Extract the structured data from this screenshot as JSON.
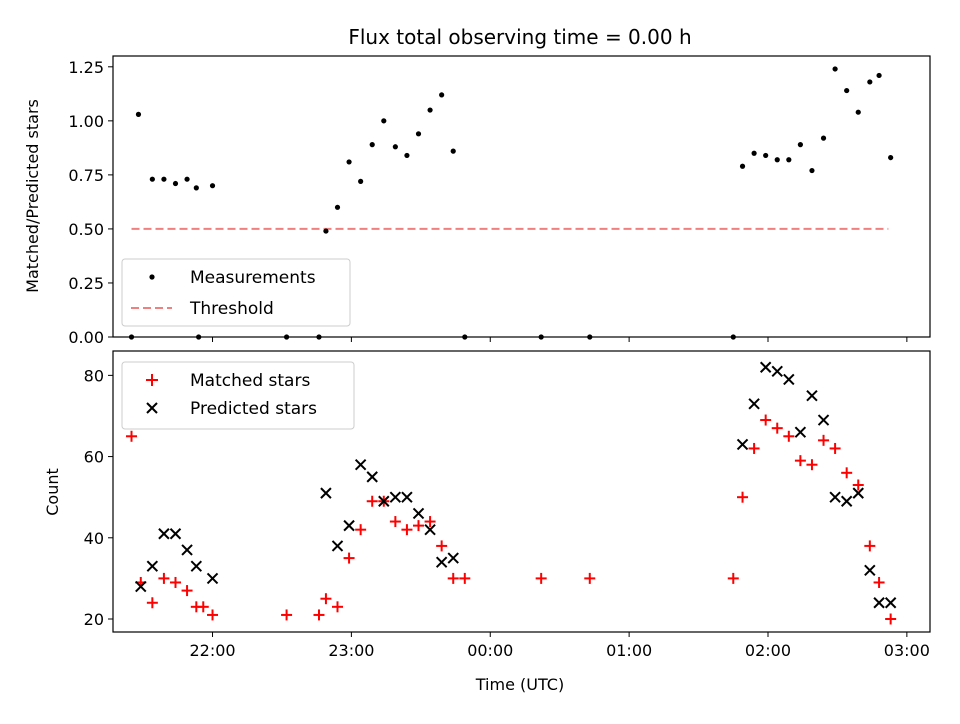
{
  "chart_data": [
    {
      "type": "scatter",
      "title": "Flux total observing time = 0.00 h",
      "xlabel": "",
      "ylabel": "Matched/Predicted stars",
      "xlim": [
        "21:17",
        "03:10"
      ],
      "ylim": [
        0,
        1.3
      ],
      "yticks": [
        "0.00",
        "0.25",
        "0.50",
        "0.75",
        "1.00",
        "1.25"
      ],
      "xticks": [
        "22:00",
        "23:00",
        "00:00",
        "01:00",
        "02:00",
        "03:00"
      ],
      "legend": {
        "placement": "lower-left",
        "entries": [
          "Measurements",
          "Threshold"
        ]
      },
      "threshold": {
        "name": "Threshold",
        "value": 0.5,
        "x_range": [
          "21:25",
          "02:52"
        ],
        "color": "#f08080"
      },
      "series": [
        {
          "name": "Measurements",
          "color": "#000000",
          "points": [
            [
              "21:25",
              0.0
            ],
            [
              "21:28",
              1.03
            ],
            [
              "21:34",
              0.73
            ],
            [
              "21:39",
              0.73
            ],
            [
              "21:44",
              0.71
            ],
            [
              "21:49",
              0.73
            ],
            [
              "21:53",
              0.69
            ],
            [
              "21:54",
              0.0
            ],
            [
              "22:00",
              0.7
            ],
            [
              "22:32",
              0.0
            ],
            [
              "22:46",
              0.0
            ],
            [
              "22:49",
              0.49
            ],
            [
              "22:54",
              0.6
            ],
            [
              "22:59",
              0.81
            ],
            [
              "23:04",
              0.72
            ],
            [
              "23:09",
              0.89
            ],
            [
              "23:14",
              1.0
            ],
            [
              "23:19",
              0.88
            ],
            [
              "23:24",
              0.84
            ],
            [
              "23:29",
              0.94
            ],
            [
              "23:34",
              1.05
            ],
            [
              "23:39",
              1.12
            ],
            [
              "23:44",
              0.86
            ],
            [
              "23:49",
              0.0
            ],
            [
              "00:22",
              0.0
            ],
            [
              "00:43",
              0.0
            ],
            [
              "01:45",
              0.0
            ],
            [
              "01:49",
              0.79
            ],
            [
              "01:54",
              0.85
            ],
            [
              "01:59",
              0.84
            ],
            [
              "02:04",
              0.82
            ],
            [
              "02:09",
              0.82
            ],
            [
              "02:14",
              0.89
            ],
            [
              "02:19",
              0.77
            ],
            [
              "02:24",
              0.92
            ],
            [
              "02:29",
              1.24
            ],
            [
              "02:34",
              1.14
            ],
            [
              "02:39",
              1.04
            ],
            [
              "02:44",
              1.18
            ],
            [
              "02:48",
              1.21
            ],
            [
              "02:53",
              0.83
            ]
          ]
        }
      ]
    },
    {
      "type": "scatter",
      "title": "",
      "xlabel": "Time (UTC)",
      "ylabel": "Count",
      "xlim": [
        "21:17",
        "03:10"
      ],
      "ylim": [
        16.8,
        86
      ],
      "yticks": [
        "20",
        "40",
        "60",
        "80"
      ],
      "xticks": [
        "22:00",
        "23:00",
        "00:00",
        "01:00",
        "02:00",
        "03:00"
      ],
      "legend": {
        "placement": "upper-left",
        "entries": [
          "Matched stars",
          "Predicted stars"
        ]
      },
      "series": [
        {
          "name": "Matched stars",
          "color": "#ff0000",
          "marker": "plus",
          "points": [
            [
              "21:25",
              65
            ],
            [
              "21:29",
              29
            ],
            [
              "21:34",
              24
            ],
            [
              "21:39",
              30
            ],
            [
              "21:44",
              29
            ],
            [
              "21:49",
              27
            ],
            [
              "21:53",
              23
            ],
            [
              "21:56",
              23
            ],
            [
              "22:00",
              21
            ],
            [
              "22:32",
              21
            ],
            [
              "22:46",
              21
            ],
            [
              "22:49",
              25
            ],
            [
              "22:54",
              23
            ],
            [
              "22:59",
              35
            ],
            [
              "23:04",
              42
            ],
            [
              "23:09",
              49
            ],
            [
              "23:14",
              49
            ],
            [
              "23:19",
              44
            ],
            [
              "23:24",
              42
            ],
            [
              "23:29",
              43
            ],
            [
              "23:34",
              44
            ],
            [
              "23:39",
              38
            ],
            [
              "23:44",
              30
            ],
            [
              "23:49",
              30
            ],
            [
              "00:22",
              30
            ],
            [
              "00:43",
              30
            ],
            [
              "01:45",
              30
            ],
            [
              "01:49",
              50
            ],
            [
              "01:54",
              62
            ],
            [
              "01:59",
              69
            ],
            [
              "02:04",
              67
            ],
            [
              "02:09",
              65
            ],
            [
              "02:14",
              59
            ],
            [
              "02:19",
              58
            ],
            [
              "02:24",
              64
            ],
            [
              "02:29",
              62
            ],
            [
              "02:34",
              56
            ],
            [
              "02:39",
              53
            ],
            [
              "02:44",
              38
            ],
            [
              "02:48",
              29
            ],
            [
              "02:53",
              20
            ]
          ]
        },
        {
          "name": "Predicted stars",
          "color": "#000000",
          "marker": "x",
          "points": [
            [
              "21:29",
              28
            ],
            [
              "21:34",
              33
            ],
            [
              "21:39",
              41
            ],
            [
              "21:44",
              41
            ],
            [
              "21:49",
              37
            ],
            [
              "21:53",
              33
            ],
            [
              "22:00",
              30
            ],
            [
              "22:49",
              51
            ],
            [
              "22:54",
              38
            ],
            [
              "22:59",
              43
            ],
            [
              "23:04",
              58
            ],
            [
              "23:09",
              55
            ],
            [
              "23:14",
              49
            ],
            [
              "23:19",
              50
            ],
            [
              "23:24",
              50
            ],
            [
              "23:29",
              46
            ],
            [
              "23:34",
              42
            ],
            [
              "23:39",
              34
            ],
            [
              "23:44",
              35
            ],
            [
              "01:49",
              63
            ],
            [
              "01:54",
              73
            ],
            [
              "01:59",
              82
            ],
            [
              "02:04",
              81
            ],
            [
              "02:09",
              79
            ],
            [
              "02:14",
              66
            ],
            [
              "02:19",
              75
            ],
            [
              "02:24",
              69
            ],
            [
              "02:29",
              50
            ],
            [
              "02:34",
              49
            ],
            [
              "02:39",
              51
            ],
            [
              "02:44",
              32
            ],
            [
              "02:48",
              24
            ],
            [
              "02:53",
              24
            ]
          ]
        }
      ]
    }
  ]
}
